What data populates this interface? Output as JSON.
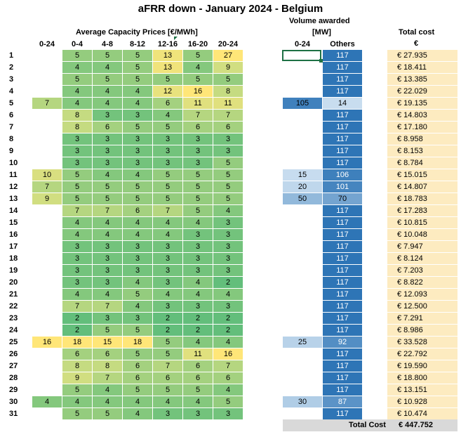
{
  "title": "aFRR down - January 2024 - Belgium",
  "headers": {
    "prices": "Average Capacity Prices [€/MWh]",
    "volume_line1": "Volume awarded",
    "volume_line2": "[MW]",
    "cost_line1": "Total cost",
    "cost_line2": "€"
  },
  "price_columns": [
    "0-24",
    "0-4",
    "4-8",
    "8-12",
    "12-16",
    "16-20",
    "20-24"
  ],
  "volume_columns": [
    "0-24",
    "Others"
  ],
  "total_label": "Total Cost",
  "total_value": "€ 447.752",
  "chart_data": {
    "type": "table",
    "title": "aFRR down - January 2024 - Belgium",
    "days": [
      1,
      2,
      3,
      4,
      5,
      6,
      7,
      8,
      9,
      10,
      11,
      12,
      13,
      14,
      15,
      16,
      17,
      18,
      19,
      20,
      21,
      22,
      23,
      24,
      25,
      26,
      27,
      28,
      29,
      30,
      31
    ],
    "prices": [
      [
        null,
        5,
        5,
        5,
        13,
        5,
        27
      ],
      [
        null,
        4,
        4,
        5,
        13,
        4,
        9
      ],
      [
        null,
        5,
        5,
        5,
        5,
        5,
        5
      ],
      [
        null,
        4,
        4,
        4,
        12,
        16,
        8
      ],
      [
        7,
        4,
        4,
        4,
        6,
        11,
        11
      ],
      [
        null,
        8,
        3,
        3,
        4,
        7,
        7
      ],
      [
        null,
        8,
        6,
        5,
        5,
        6,
        6
      ],
      [
        null,
        3,
        3,
        3,
        3,
        3,
        3
      ],
      [
        null,
        3,
        3,
        3,
        3,
        3,
        3
      ],
      [
        null,
        3,
        3,
        3,
        3,
        3,
        5
      ],
      [
        10,
        5,
        4,
        4,
        5,
        5,
        5
      ],
      [
        7,
        5,
        5,
        5,
        5,
        5,
        5
      ],
      [
        9,
        5,
        5,
        5,
        5,
        5,
        5
      ],
      [
        null,
        7,
        7,
        6,
        7,
        5,
        4
      ],
      [
        null,
        4,
        4,
        4,
        4,
        4,
        3
      ],
      [
        null,
        4,
        4,
        4,
        4,
        3,
        3
      ],
      [
        null,
        3,
        3,
        3,
        3,
        3,
        3
      ],
      [
        null,
        3,
        3,
        3,
        3,
        3,
        3
      ],
      [
        null,
        3,
        3,
        3,
        3,
        3,
        3
      ],
      [
        null,
        3,
        3,
        4,
        3,
        4,
        2
      ],
      [
        null,
        4,
        4,
        5,
        4,
        4,
        4
      ],
      [
        null,
        7,
        7,
        4,
        3,
        3,
        3
      ],
      [
        null,
        2,
        3,
        3,
        2,
        2,
        2
      ],
      [
        null,
        2,
        5,
        5,
        2,
        2,
        2
      ],
      [
        16,
        18,
        15,
        18,
        5,
        4,
        4
      ],
      [
        null,
        6,
        6,
        5,
        5,
        11,
        16
      ],
      [
        null,
        8,
        8,
        6,
        7,
        6,
        7
      ],
      [
        null,
        9,
        7,
        6,
        6,
        6,
        6
      ],
      [
        null,
        5,
        4,
        5,
        5,
        5,
        4
      ],
      [
        4,
        4,
        4,
        4,
        4,
        4,
        5
      ],
      [
        null,
        5,
        5,
        4,
        3,
        3,
        3
      ]
    ],
    "volume_0_24": [
      null,
      null,
      null,
      null,
      105,
      null,
      null,
      null,
      null,
      null,
      15,
      20,
      50,
      null,
      null,
      null,
      null,
      null,
      null,
      null,
      null,
      null,
      null,
      null,
      25,
      null,
      null,
      null,
      null,
      30,
      null
    ],
    "volume_others": [
      117,
      117,
      117,
      117,
      14,
      117,
      117,
      117,
      117,
      117,
      106,
      101,
      70,
      117,
      117,
      117,
      117,
      117,
      117,
      117,
      117,
      117,
      117,
      117,
      92,
      117,
      117,
      117,
      117,
      87,
      117
    ],
    "total_cost": [
      "€ 27.935",
      "€ 18.411",
      "€ 13.385",
      "€ 22.029",
      "€ 19.135",
      "€ 14.803",
      "€ 17.180",
      "€ 8.958",
      "€ 8.153",
      "€ 8.784",
      "€ 15.015",
      "€ 14.807",
      "€ 18.783",
      "€ 17.283",
      "€ 10.815",
      "€ 10.048",
      "€ 7.947",
      "€ 8.124",
      "€ 7.203",
      "€ 8.822",
      "€ 12.093",
      "€ 12.500",
      "€ 7.291",
      "€ 8.986",
      "€ 33.528",
      "€ 22.792",
      "€ 19.590",
      "€ 18.800",
      "€ 13.151",
      "€ 10.928",
      "€ 10.474"
    ]
  }
}
